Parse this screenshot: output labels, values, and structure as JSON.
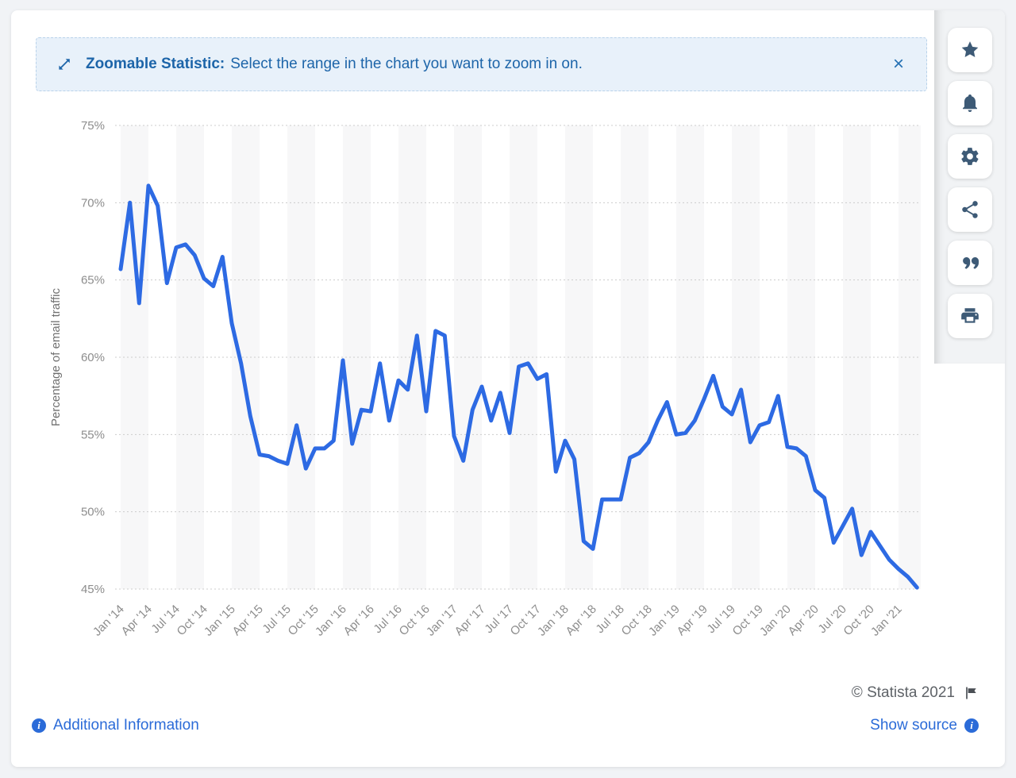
{
  "banner": {
    "bold_label": "Zoomable Statistic:",
    "message": "Select the range in the chart you want to zoom in on.",
    "close_label": "×"
  },
  "sidebar": {
    "buttons": [
      {
        "icon": "star"
      },
      {
        "icon": "bell"
      },
      {
        "icon": "gear"
      },
      {
        "icon": "share"
      },
      {
        "icon": "quote"
      },
      {
        "icon": "printer"
      }
    ],
    "icon_color": "#3d5a76"
  },
  "footer": {
    "additional_info": "Additional Information",
    "copyright": "© Statista 2021",
    "show_source": "Show source"
  },
  "colors": {
    "line": "#2d6ae3",
    "banner_text": "#1d65a9",
    "link": "#2b6bd8",
    "axis_text": "#8d8d8d",
    "gridline": "#cccccc",
    "band": "#f7f7f8"
  },
  "chart_data": {
    "type": "line",
    "title": "",
    "xlabel": "",
    "ylabel": "Percentage of email traffic",
    "ylim": [
      45,
      75
    ],
    "y_ticks": [
      {
        "value": 45,
        "label": "45%"
      },
      {
        "value": 50,
        "label": "50%"
      },
      {
        "value": 55,
        "label": "55%"
      },
      {
        "value": 60,
        "label": "60%"
      },
      {
        "value": 65,
        "label": "65%"
      },
      {
        "value": 70,
        "label": "70%"
      },
      {
        "value": 75,
        "label": "75%"
      }
    ],
    "x_start": "Jan 2014",
    "x_end": "Mar 2021",
    "x_interval": "monthly",
    "x_tick_labels": [
      "Jan '14",
      "Apr '14",
      "Jul '14",
      "Oct '14",
      "Jan '15",
      "Apr '15",
      "Jul '15",
      "Oct '15",
      "Jan '16",
      "Apr '16",
      "Jul '16",
      "Oct '16",
      "Jan '17",
      "Apr '17",
      "Jul '17",
      "Oct '17",
      "Jan '18",
      "Apr '18",
      "Jul '18",
      "Oct '18",
      "Jan '19",
      "Apr '19",
      "Jul '19",
      "Oct '19",
      "Jan '20",
      "Apr '20",
      "Jul '20",
      "Oct '20",
      "Jan '21"
    ],
    "grid": "horizontal-dotted, alternating quarterly background bands",
    "legend": "none",
    "series": [
      {
        "name": "Percentage of email traffic",
        "color": "#2d6ae3",
        "values": [
          65.7,
          70.0,
          63.5,
          71.1,
          69.8,
          64.8,
          67.1,
          67.3,
          66.6,
          65.1,
          64.6,
          66.5,
          62.2,
          59.6,
          56.2,
          53.7,
          53.6,
          53.3,
          53.1,
          55.6,
          52.8,
          54.1,
          54.1,
          54.6,
          59.8,
          54.4,
          56.6,
          56.5,
          59.6,
          55.9,
          58.5,
          57.9,
          61.4,
          56.5,
          61.7,
          61.4,
          54.9,
          53.3,
          56.6,
          58.1,
          55.9,
          57.7,
          55.1,
          59.4,
          59.6,
          58.6,
          58.9,
          52.6,
          54.6,
          53.4,
          48.1,
          47.6,
          50.8,
          50.8,
          50.8,
          53.5,
          53.8,
          54.5,
          55.9,
          57.1,
          55.0,
          55.1,
          55.9,
          57.3,
          58.8,
          56.8,
          56.3,
          57.9,
          54.5,
          55.6,
          55.8,
          57.5,
          54.2,
          54.1,
          53.6,
          51.4,
          50.9,
          48.0,
          49.1,
          50.2,
          47.2,
          48.7,
          47.8,
          46.9,
          46.3,
          45.8,
          45.1
        ]
      }
    ]
  }
}
